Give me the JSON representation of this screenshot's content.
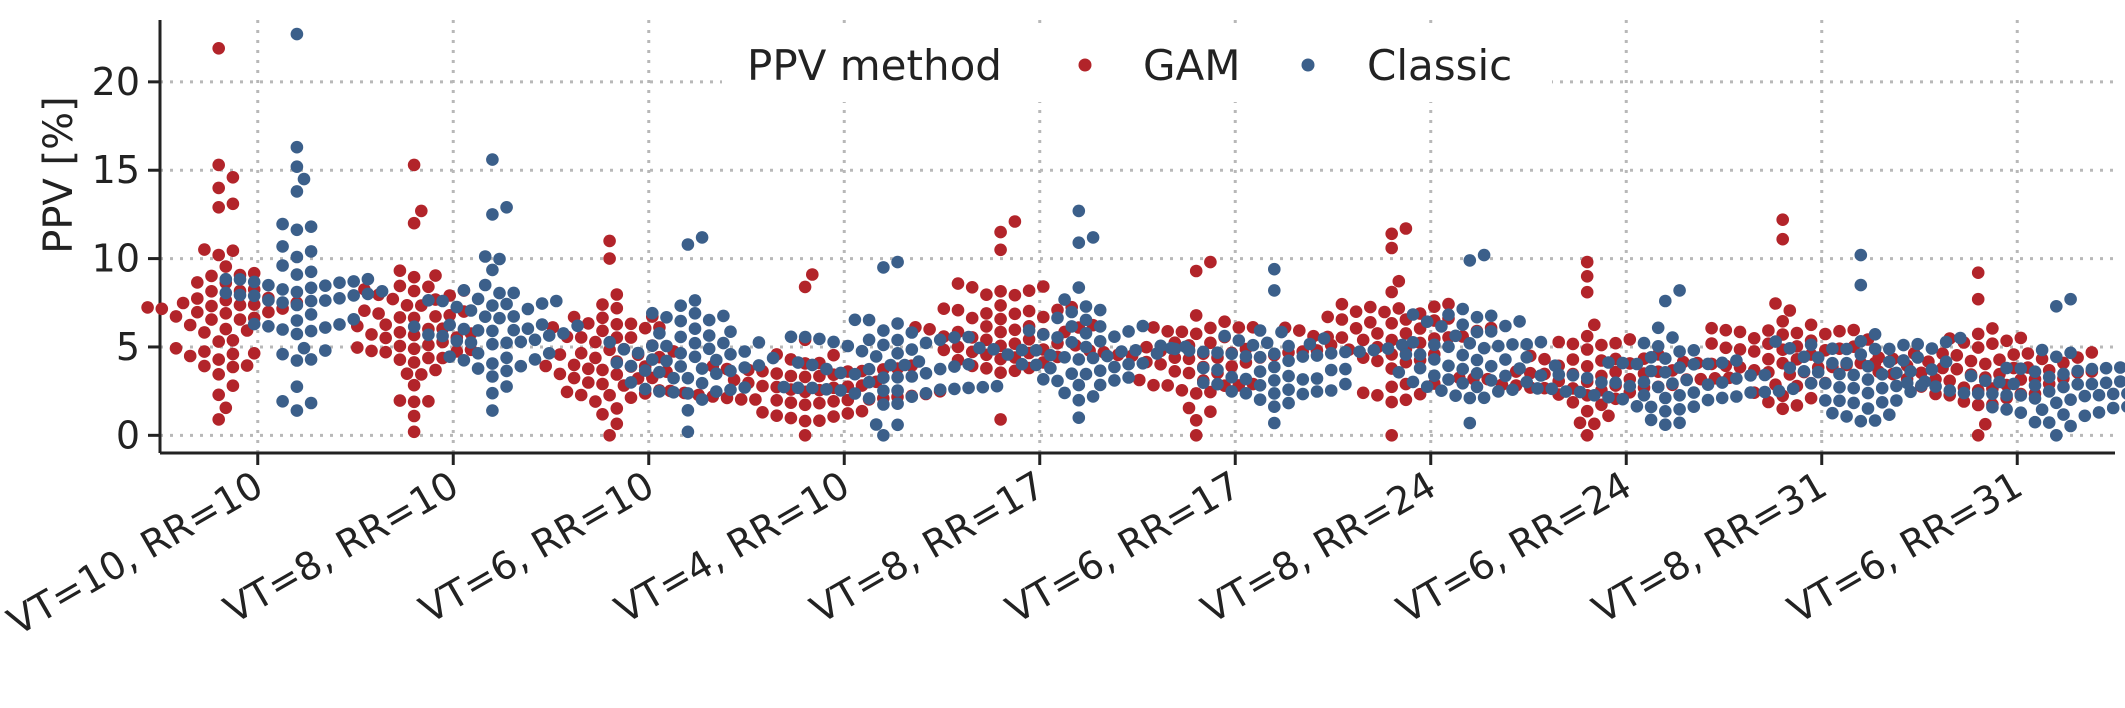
{
  "chart_data": {
    "type": "scatter",
    "subtype": "beeswarm",
    "title": "",
    "xlabel": "",
    "ylabel": "PPV [%]",
    "ylim": [
      -1,
      23.5
    ],
    "yticks": [
      0,
      5,
      10,
      15,
      20
    ],
    "grid": true,
    "legend": {
      "title": "PPV method",
      "placement": "top-center"
    },
    "categories": [
      "VT=10, RR=10",
      "VT=8, RR=10",
      "VT=6, RR=10",
      "VT=4, RR=10",
      "VT=8, RR=17",
      "VT=6, RR=17",
      "VT=8, RR=24",
      "VT=6, RR=24",
      "VT=8, RR=31",
      "VT=6, RR=31"
    ],
    "series": [
      {
        "name": "GAM",
        "color": "#b2242a",
        "groups": [
          {
            "n": 55,
            "median": 6.8,
            "spread": 2.8,
            "min": 0.9,
            "max": 21.9,
            "outliers": [
              21.9,
              15.3,
              14.6,
              14.0,
              13.1,
              12.9
            ]
          },
          {
            "n": 55,
            "median": 5.5,
            "spread": 2.3,
            "min": 0.2,
            "max": 15.3,
            "outliers": [
              15.3,
              12.7,
              12.0
            ]
          },
          {
            "n": 55,
            "median": 4.5,
            "spread": 2.0,
            "min": 0.0,
            "max": 11.0,
            "outliers": [
              11.0,
              10.0
            ]
          },
          {
            "n": 60,
            "median": 3.0,
            "spread": 1.5,
            "min": 0.0,
            "max": 9.1,
            "outliers": [
              9.1,
              8.4
            ]
          },
          {
            "n": 55,
            "median": 5.6,
            "spread": 2.0,
            "min": 0.9,
            "max": 12.1,
            "outliers": [
              12.1,
              11.5,
              10.5
            ]
          },
          {
            "n": 55,
            "median": 4.0,
            "spread": 1.8,
            "min": 0.0,
            "max": 9.8,
            "outliers": [
              9.8,
              9.3
            ]
          },
          {
            "n": 55,
            "median": 5.2,
            "spread": 2.2,
            "min": 0.0,
            "max": 11.7,
            "outliers": [
              11.7,
              11.4,
              10.6
            ]
          },
          {
            "n": 60,
            "median": 3.6,
            "spread": 1.6,
            "min": 0.0,
            "max": 9.8,
            "outliers": [
              9.8,
              9.0,
              8.1
            ]
          },
          {
            "n": 55,
            "median": 4.8,
            "spread": 1.8,
            "min": 1.5,
            "max": 12.2,
            "outliers": [
              12.2,
              11.1
            ]
          },
          {
            "n": 60,
            "median": 3.5,
            "spread": 1.5,
            "min": 0.0,
            "max": 9.2,
            "outliers": [
              9.2,
              7.7
            ]
          }
        ]
      },
      {
        "name": "Classic",
        "color": "#3b5f8a",
        "groups": [
          {
            "n": 55,
            "median": 7.2,
            "spread": 3.0,
            "min": 1.4,
            "max": 22.7,
            "outliers": [
              22.7,
              16.3,
              15.2,
              14.5,
              13.8
            ]
          },
          {
            "n": 55,
            "median": 5.8,
            "spread": 2.5,
            "min": 1.4,
            "max": 15.6,
            "outliers": [
              15.6,
              12.9,
              12.5
            ]
          },
          {
            "n": 55,
            "median": 5.0,
            "spread": 2.0,
            "min": 0.2,
            "max": 11.2,
            "outliers": [
              11.2,
              10.8
            ]
          },
          {
            "n": 60,
            "median": 3.8,
            "spread": 1.7,
            "min": 0.0,
            "max": 9.8,
            "outliers": [
              9.8,
              9.5
            ]
          },
          {
            "n": 55,
            "median": 5.0,
            "spread": 2.0,
            "min": 1.0,
            "max": 12.7,
            "outliers": [
              12.7,
              11.2,
              10.9
            ]
          },
          {
            "n": 55,
            "median": 4.0,
            "spread": 1.7,
            "min": 0.7,
            "max": 9.4,
            "outliers": [
              9.4,
              8.2
            ]
          },
          {
            "n": 55,
            "median": 4.4,
            "spread": 2.2,
            "min": 0.7,
            "max": 10.2,
            "outliers": [
              10.2,
              9.9
            ]
          },
          {
            "n": 60,
            "median": 3.0,
            "spread": 1.6,
            "min": 0.6,
            "max": 8.2,
            "outliers": [
              8.2,
              7.6
            ]
          },
          {
            "n": 55,
            "median": 3.6,
            "spread": 1.7,
            "min": 0.8,
            "max": 10.2,
            "outliers": [
              10.2,
              8.5
            ]
          },
          {
            "n": 60,
            "median": 2.6,
            "spread": 1.3,
            "min": 0.0,
            "max": 7.7,
            "outliers": [
              7.7,
              7.3
            ]
          }
        ]
      }
    ]
  }
}
